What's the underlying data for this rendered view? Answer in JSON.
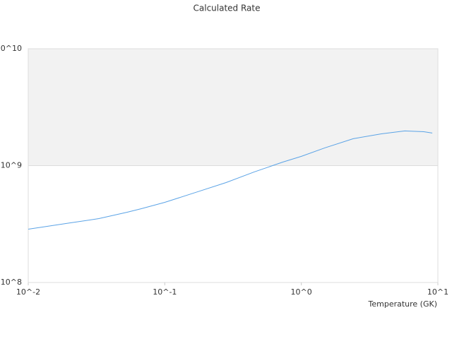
{
  "chart_data": {
    "type": "line",
    "title": "Calculated Rate",
    "x_label": "Temperature (GK)",
    "log_x": true,
    "log_y": true,
    "xlim": [
      0.01,
      10
    ],
    "ylim": [
      100000000,
      10000000000
    ],
    "xticks": [
      {
        "value": 0.01,
        "label": "10^-2"
      },
      {
        "value": 0.1,
        "label": "10^-1"
      },
      {
        "value": 1,
        "label": "10^0"
      },
      {
        "value": 10,
        "label": "10^1"
      }
    ],
    "yticks": [
      {
        "value": 100000000,
        "label": "10^8"
      },
      {
        "value": 1000000000,
        "label": "10^9"
      },
      {
        "value": 10000000000,
        "label": "10^10"
      }
    ],
    "series": [
      {
        "color": "#5ba3e6",
        "x": [
          0.01,
          0.0127,
          0.0204,
          0.0329,
          0.053,
          0.0673,
          0.1,
          0.1746,
          0.281,
          0.452,
          0.728,
          1.0,
          1.49,
          2.4,
          3.86,
          5.72,
          7.89,
          9.1
        ],
        "values": [
          286000000,
          298000000,
          324000000,
          352000000,
          399000000,
          428000000,
          485000000,
          598000000,
          716000000,
          883000000,
          1070000000,
          1200000000,
          1420000000,
          1700000000,
          1870000000,
          1980000000,
          1950000000,
          1900000000
        ]
      }
    ]
  }
}
